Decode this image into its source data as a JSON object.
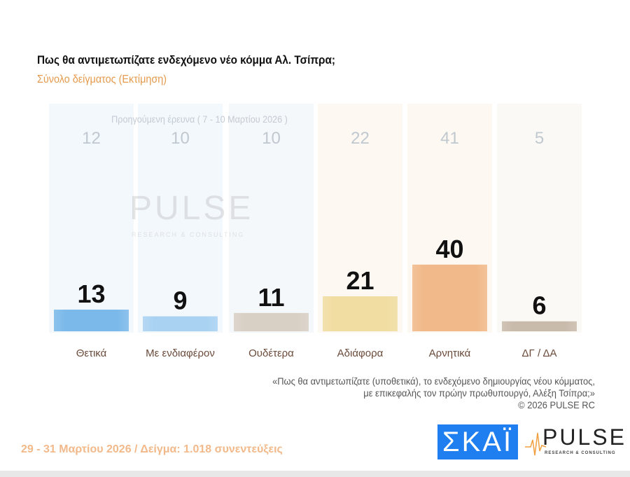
{
  "header": {
    "title": "Πως θα αντιμετωπίζατε ενδεχόμενο νέο κόμμα Αλ. Τσίπρα;",
    "subtitle": "Σύνολο δείγματος  (Εκτίμηση)"
  },
  "chart_data": {
    "type": "bar",
    "title": "Πως θα αντιμετωπίζατε ενδεχόμενο νέο κόμμα Αλ. Τσίπρα;",
    "subtitle": "Σύνολο δείγματος  (Εκτίμηση)",
    "categories": [
      "Θετικά",
      "Με ενδιαφέρον",
      "Ουδέτερα",
      "Αδιάφορα",
      "Αρνητικά",
      "ΔΓ / ΔΑ"
    ],
    "series": [
      {
        "name": "Εκτίμηση",
        "values": [
          13,
          9,
          11,
          21,
          40,
          6
        ]
      },
      {
        "name": "Προηγούμενη έρευνα ( 7 - 10 Μαρτίου 2026 )",
        "values": [
          12,
          10,
          10,
          22,
          41,
          5
        ]
      }
    ],
    "colors": [
      "#7bb9ea",
      "#a9d2f2",
      "#d9d0c5",
      "#f1dda2",
      "#f1b98a",
      "#c9bbac"
    ],
    "ylim": [
      0,
      100
    ],
    "grid": false
  },
  "prev_note": "Προηγούμενη έρευνα ( 7 - 10 Μαρτίου 2026 )",
  "note": {
    "line1": "«Πως θα αντιμετωπίζατε (υποθετικά), το ενδεχόμενο δημιουργίας νέου κόμματος,",
    "line2": "με επικεφαλής τον πρώην πρωθυπουργό, Αλέξη Τσίπρα;»",
    "line3": "©  2026  PULSE RC"
  },
  "footer": "29 - 31  Μαρτίου 2026  /  Δείγμα:  1.018 συνεντεύξεις",
  "logos": {
    "skai": "ΣΚΑΪ",
    "pulse": "PULSE",
    "pulse_tag": "RESEARCH & CONSULTING"
  }
}
